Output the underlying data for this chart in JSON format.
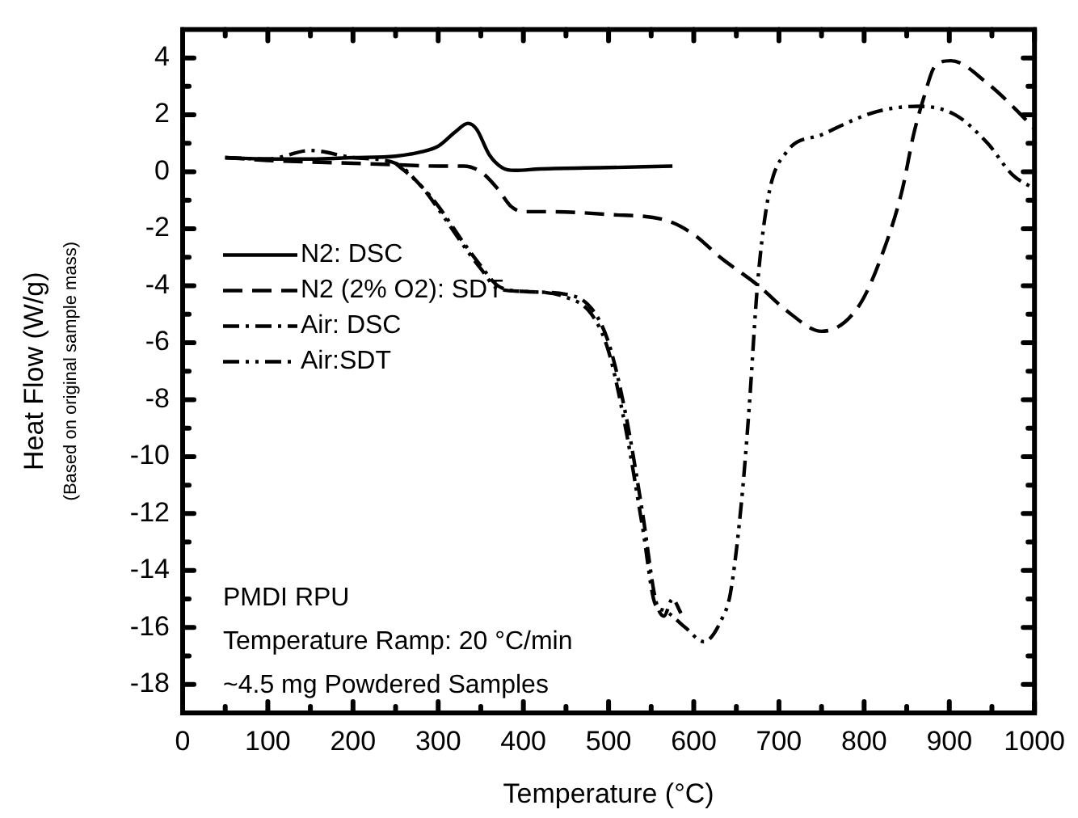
{
  "chart_data": {
    "type": "line",
    "xlabel": "Temperature (°C)",
    "ylabel": "Heat Flow (W/g)\n(Based on original sample mass)",
    "xlim": [
      0,
      1000
    ],
    "xticks": [
      0,
      {
        "value": 50,
        "label": null
      },
      100,
      {
        "value": 150,
        "label": null
      },
      200,
      {
        "value": 250,
        "label": null
      },
      300,
      {
        "value": 350,
        "label": null
      },
      400,
      {
        "value": 450,
        "label": null
      },
      500,
      {
        "value": 550,
        "label": null
      },
      600,
      {
        "value": 650,
        "label": null
      },
      700,
      {
        "value": 750,
        "label": null
      },
      800,
      {
        "value": 850,
        "label": null
      },
      900,
      {
        "value": 950,
        "label": null
      },
      1000
    ],
    "ylim": [
      -19,
      5
    ],
    "yticks": [
      -18,
      {
        "value": -17,
        "label": null
      },
      -16,
      {
        "value": -15,
        "label": null
      },
      -14,
      {
        "value": -13,
        "label": null
      },
      -12,
      {
        "value": -11,
        "label": null
      },
      -10,
      {
        "value": -9,
        "label": null
      },
      -8,
      {
        "value": -7,
        "label": null
      },
      -6,
      {
        "value": -5,
        "label": null
      },
      -4,
      {
        "value": -3,
        "label": null
      },
      -2,
      {
        "value": -1,
        "label": null
      },
      0,
      {
        "value": 1,
        "label": null
      },
      2,
      {
        "value": 3,
        "label": null
      },
      4
    ],
    "grid": false,
    "legend": "left",
    "marker": "none",
    "annotations": [
      "PMDI RPU",
      "Temperature Ramp: 20 °C/min",
      "~4.5 mg Powdered Samples"
    ],
    "series": [
      {
        "name": "N2: DSC",
        "color": "#000000",
        "line_style": "solid",
        "x": [
          50,
          100,
          150,
          200,
          250,
          280,
          300,
          320,
          335,
          345,
          360,
          375,
          390,
          420,
          500,
          575
        ],
        "values": [
          0.5,
          0.45,
          0.45,
          0.5,
          0.55,
          0.7,
          0.9,
          1.4,
          1.7,
          1.5,
          0.6,
          0.15,
          0.05,
          0.1,
          0.15,
          0.2
        ]
      },
      {
        "name": "N2 (2% O2): SDT",
        "color": "#000000",
        "line_style": "dashed",
        "x": [
          50,
          100,
          200,
          250,
          300,
          330,
          350,
          370,
          385,
          400,
          430,
          500,
          567,
          600,
          631,
          676,
          710,
          750,
          794,
          826,
          845,
          858,
          870,
          883,
          902,
          945,
          981,
          1000
        ],
        "values": [
          0.5,
          0.4,
          0.3,
          0.25,
          0.2,
          0.2,
          0.0,
          -0.6,
          -1.2,
          -1.4,
          -1.4,
          -1.5,
          -1.7,
          -2.2,
          -3.0,
          -4.0,
          -4.9,
          -5.6,
          -4.7,
          -2.5,
          -0.6,
          1.3,
          2.6,
          3.7,
          3.9,
          3.1,
          2.1,
          1.5
        ]
      },
      {
        "name": "Air: DSC",
        "color": "#000000",
        "line_style": "dashdot",
        "x": [
          50,
          100,
          150,
          200,
          250,
          280,
          300,
          330,
          350,
          370,
          400,
          450,
          480,
          500,
          520,
          540,
          555,
          565,
          575,
          585
        ],
        "values": [
          0.5,
          0.45,
          0.75,
          0.5,
          0.3,
          -0.5,
          -1.2,
          -2.5,
          -3.3,
          -4.0,
          -4.2,
          -4.3,
          -4.8,
          -6.0,
          -8.5,
          -12.0,
          -15.0,
          -15.6,
          -15.0,
          -15.5
        ]
      },
      {
        "name": "Air:SDT",
        "color": "#000000",
        "line_style": "dashdotdot",
        "x": [
          250,
          280,
          300,
          330,
          350,
          370,
          400,
          450,
          480,
          500,
          520,
          540,
          555,
          565,
          590,
          612,
          633,
          643,
          656,
          665,
          675,
          688,
          709,
          750,
          813,
          864,
          907,
          945,
          974,
          1000
        ],
        "values": [
          0.3,
          -0.5,
          -1.3,
          -2.6,
          -3.4,
          -4.1,
          -4.2,
          -4.4,
          -5.0,
          -6.3,
          -9.0,
          -12.5,
          -15.2,
          -15.4,
          -16.0,
          -16.5,
          -15.7,
          -14.8,
          -11.6,
          -8.3,
          -3.9,
          -0.8,
          0.7,
          1.3,
          2.1,
          2.3,
          2.0,
          1.0,
          -0.1,
          -0.6
        ]
      }
    ]
  }
}
